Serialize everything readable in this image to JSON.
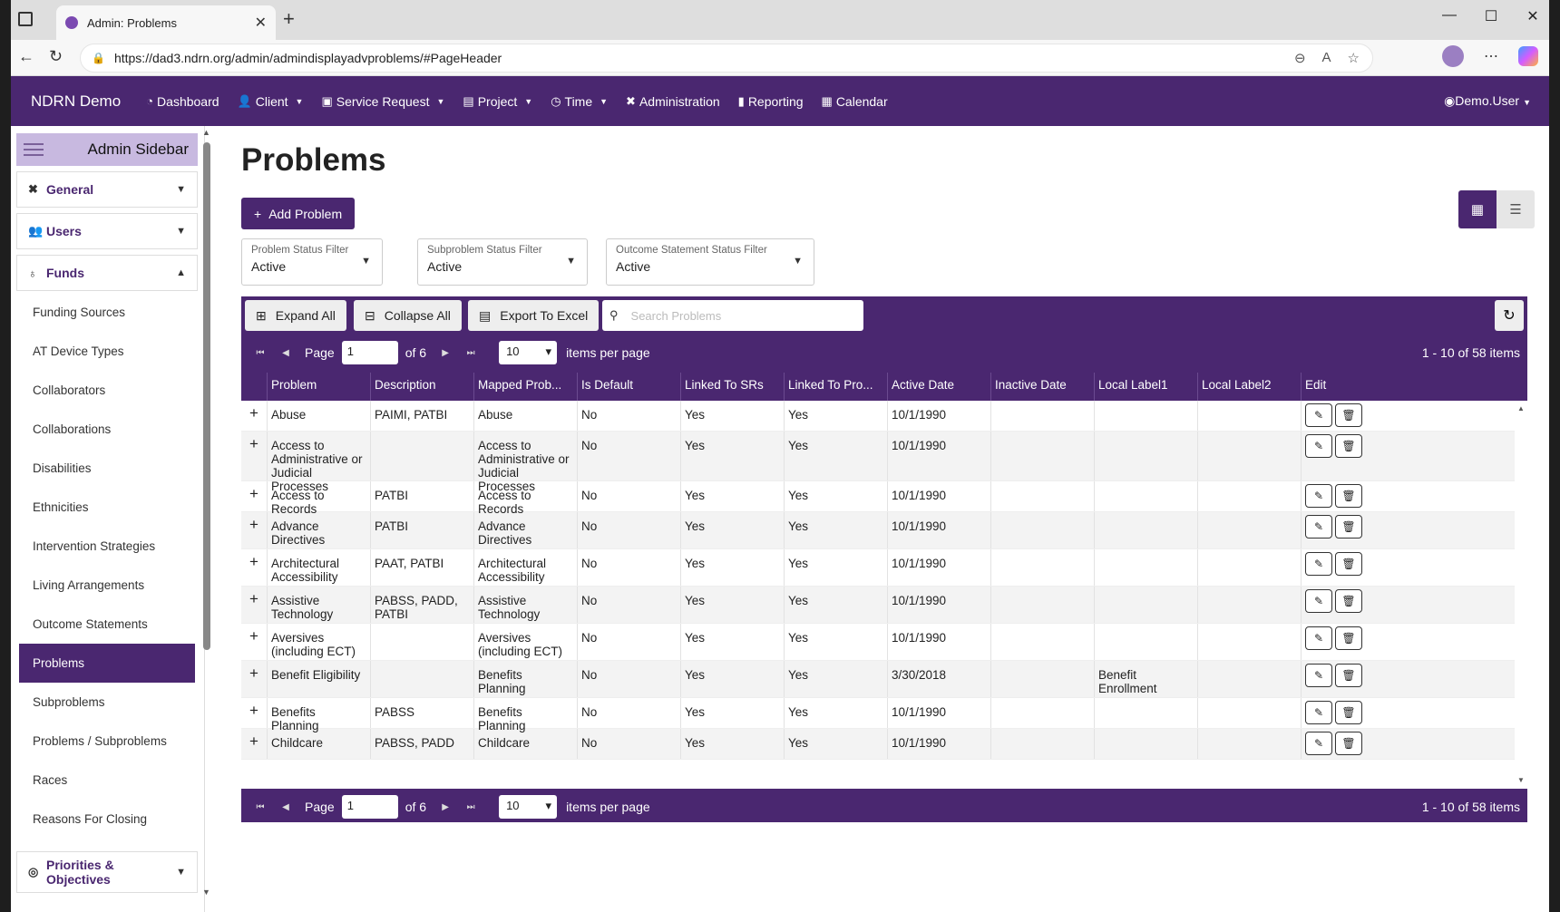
{
  "browser": {
    "tab_title": "Admin: Problems",
    "url": "https://dad3.ndrn.org/admin/admindisplayadvproblems/#PageHeader"
  },
  "app": {
    "brand": "NDRN Demo",
    "nav": [
      {
        "label": "Dashboard",
        "icon": "dashboard-icon",
        "caret": false
      },
      {
        "label": "Client",
        "icon": "user-icon",
        "caret": true
      },
      {
        "label": "Service Request",
        "icon": "briefcase-icon",
        "caret": true
      },
      {
        "label": "Project",
        "icon": "file-icon",
        "caret": true
      },
      {
        "label": "Time",
        "icon": "clock-icon",
        "caret": true
      },
      {
        "label": "Administration",
        "icon": "tools-icon",
        "caret": false
      },
      {
        "label": "Reporting",
        "icon": "report-icon",
        "caret": false
      },
      {
        "label": "Calendar",
        "icon": "calendar-icon",
        "caret": false
      }
    ],
    "user": "Demo.User"
  },
  "sidebar": {
    "title": "Admin Sidebar",
    "sections": [
      {
        "label": "General",
        "icon": "tools-icon"
      },
      {
        "label": "Users",
        "icon": "users-icon"
      },
      {
        "label": "Funds",
        "icon": "money-bag-icon"
      }
    ],
    "items": [
      "Funding Sources",
      "AT Device Types",
      "Collaborators",
      "Collaborations",
      "Disabilities",
      "Ethnicities",
      "Intervention Strategies",
      "Living Arrangements",
      "Outcome Statements",
      "Problems",
      "Subproblems",
      "Problems / Subproblems",
      "Races",
      "Reasons For Closing"
    ],
    "active_item": "Problems",
    "bottom_section": {
      "label": "Priorities & Objectives",
      "icon": "target-icon"
    }
  },
  "page": {
    "title": "Problems",
    "add_button": "Add Problem",
    "filters": [
      {
        "label": "Problem Status Filter",
        "value": "Active"
      },
      {
        "label": "Subproblem Status Filter",
        "value": "Active"
      },
      {
        "label": "Outcome Statement Status Filter",
        "value": "Active"
      }
    ]
  },
  "grid": {
    "expand_all": "Expand All",
    "collapse_all": "Collapse All",
    "export": "Export To Excel",
    "search_placeholder": "Search Problems",
    "pager": {
      "page_label": "Page",
      "page": "1",
      "of": "of 6",
      "page_size": "10",
      "per_page": "items per page",
      "info": "1 - 10 of 58 items"
    },
    "columns": [
      "Problem",
      "Description",
      "Mapped Prob...",
      "Is Default",
      "Linked To SRs",
      "Linked To Pro...",
      "Active Date",
      "Inactive Date",
      "Local Label1",
      "Local Label2",
      "Edit"
    ],
    "rows": [
      [
        "Abuse",
        "PAIMI, PATBI",
        "Abuse",
        "No",
        "Yes",
        "Yes",
        "10/1/1990",
        "",
        "",
        ""
      ],
      [
        "Access to Administrative or Judicial Processes",
        "",
        "Access to Administrative or Judicial Processes",
        "No",
        "Yes",
        "Yes",
        "10/1/1990",
        "",
        "",
        ""
      ],
      [
        "Access to Records",
        "PATBI",
        "Access to Records",
        "No",
        "Yes",
        "Yes",
        "10/1/1990",
        "",
        "",
        ""
      ],
      [
        "Advance Directives",
        "PATBI",
        "Advance Directives",
        "No",
        "Yes",
        "Yes",
        "10/1/1990",
        "",
        "",
        ""
      ],
      [
        "Architectural Accessibility",
        "PAAT, PATBI",
        "Architectural Accessibility",
        "No",
        "Yes",
        "Yes",
        "10/1/1990",
        "",
        "",
        ""
      ],
      [
        "Assistive Technology",
        "PABSS, PADD, PATBI",
        "Assistive Technology",
        "No",
        "Yes",
        "Yes",
        "10/1/1990",
        "",
        "",
        ""
      ],
      [
        "Aversives (including ECT)",
        "",
        "Aversives (including ECT)",
        "No",
        "Yes",
        "Yes",
        "10/1/1990",
        "",
        "",
        ""
      ],
      [
        "Benefit Eligibility",
        "",
        "Benefits Planning",
        "No",
        "Yes",
        "Yes",
        "3/30/2018",
        "",
        "Benefit Enrollment",
        ""
      ],
      [
        "Benefits Planning",
        "PABSS",
        "Benefits Planning",
        "No",
        "Yes",
        "Yes",
        "10/1/1990",
        "",
        "",
        ""
      ],
      [
        "Childcare",
        "PABSS, PADD",
        "Childcare",
        "No",
        "Yes",
        "Yes",
        "10/1/1990",
        "",
        "",
        ""
      ]
    ]
  }
}
